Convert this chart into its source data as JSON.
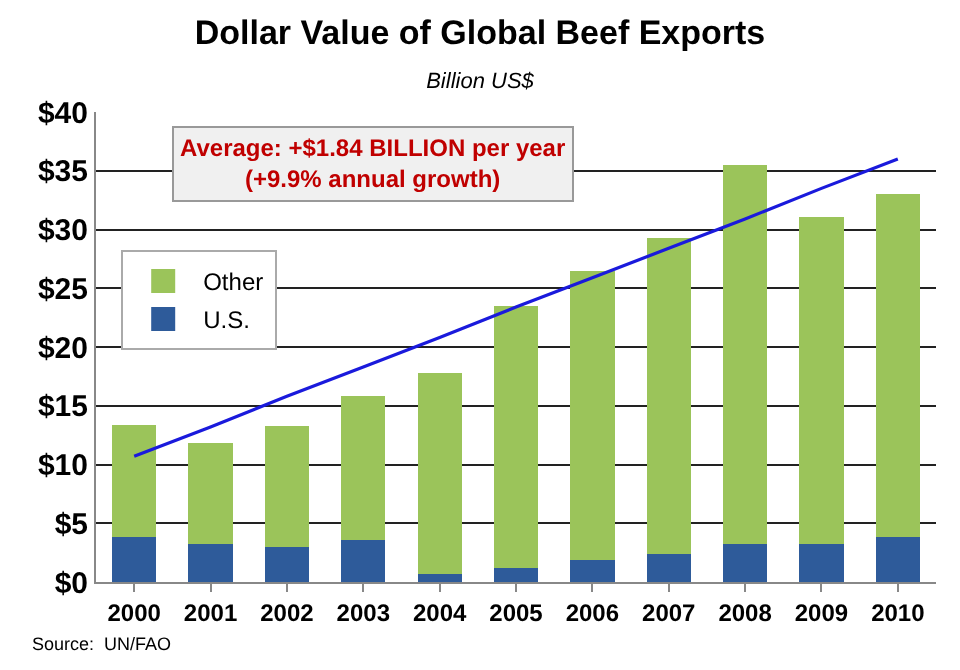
{
  "chart_data": {
    "type": "bar",
    "title": "Dollar Value of Global Beef Exports",
    "subtitle": "Billion US$",
    "categories": [
      "2000",
      "2001",
      "2002",
      "2003",
      "2004",
      "2005",
      "2006",
      "2007",
      "2008",
      "2009",
      "2010"
    ],
    "stacked": true,
    "series": [
      {
        "name": "U.S.",
        "color": "#2e5b9a",
        "values": [
          3.8,
          3.2,
          3.0,
          3.6,
          0.7,
          1.2,
          1.9,
          2.4,
          3.2,
          3.2,
          3.8
        ]
      },
      {
        "name": "Other",
        "color": "#9bc45a",
        "values": [
          9.6,
          8.6,
          10.3,
          12.2,
          17.1,
          22.3,
          24.6,
          26.9,
          32.3,
          27.9,
          29.2
        ]
      },
      {
        "type": "line",
        "color": "#1a1adc",
        "values": [
          10.7,
          13.2,
          15.8,
          18.3,
          20.8,
          23.4,
          25.9,
          28.4,
          30.9,
          33.5,
          36.0
        ]
      }
    ],
    "ylim": [
      0,
      40
    ],
    "yticks": [
      {
        "value": 0,
        "label": "$0"
      },
      {
        "value": 5,
        "label": "$5"
      },
      {
        "value": 10,
        "label": "$10"
      },
      {
        "value": 15,
        "label": "$15"
      },
      {
        "value": 20,
        "label": "$20"
      },
      {
        "value": 25,
        "label": "$25"
      },
      {
        "value": 30,
        "label": "$30"
      },
      {
        "value": 35,
        "label": "$35"
      },
      {
        "value": 40,
        "label": "$40"
      }
    ],
    "grid": "y",
    "legend": "left",
    "annotations": [
      "Average: +$1.84 BILLION per year\n(+9.9% annual growth)",
      "Source:  UN/FAO"
    ]
  }
}
